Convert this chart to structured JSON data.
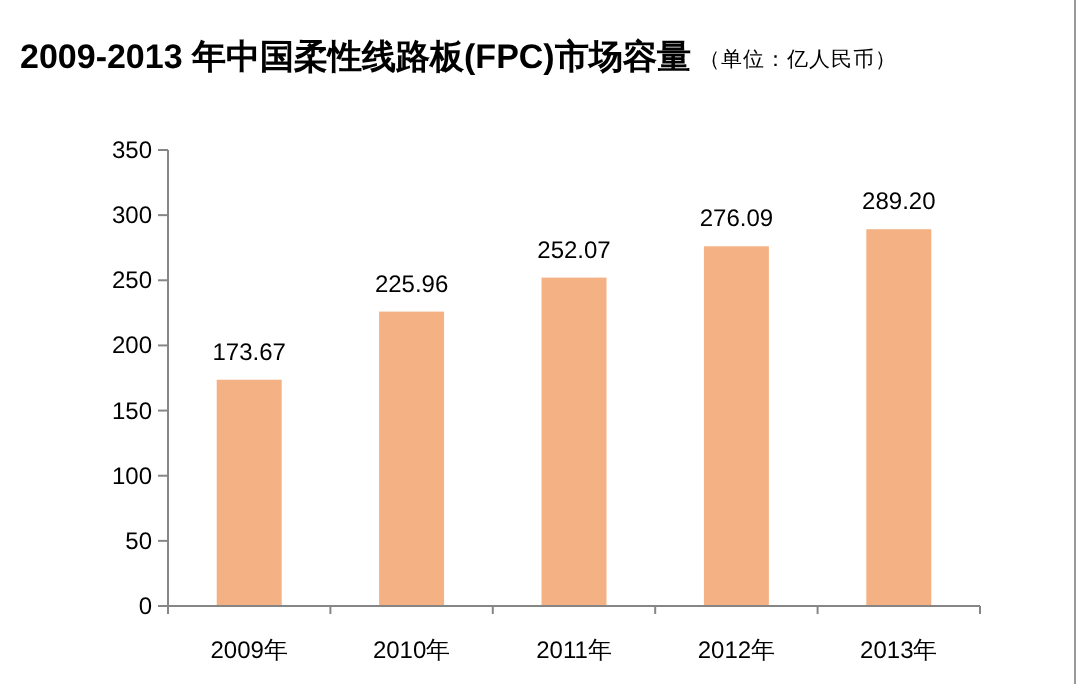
{
  "chart_data": {
    "type": "bar",
    "title": "2009-2013 年中国柔性线路板(FPC)市场容量",
    "subtitle": "（单位：亿人民币）",
    "categories": [
      "2009年",
      "2010年",
      "2011年",
      "2012年",
      "2013年"
    ],
    "values": [
      173.67,
      225.96,
      252.07,
      276.09,
      289.2
    ],
    "value_labels": [
      "173.67",
      "225.96",
      "252.07",
      "276.09",
      "289.20"
    ],
    "color": "#f4b183",
    "ylim": [
      0,
      350
    ],
    "yticks": [
      0,
      50,
      100,
      150,
      200,
      250,
      300,
      350
    ],
    "grid": false
  }
}
